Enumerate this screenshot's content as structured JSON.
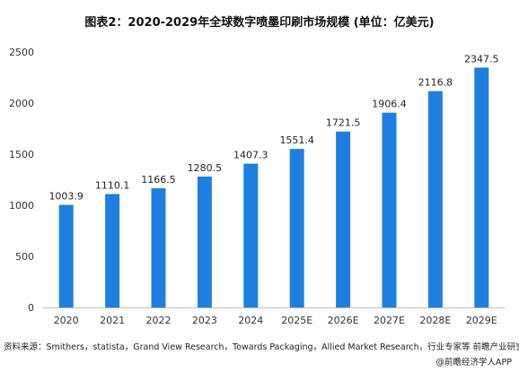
{
  "chart_data": {
    "type": "bar",
    "title": "图表2：2020-2029年全球数字喷墨印刷市场规模 (单位：亿美元)",
    "categories": [
      "2020",
      "2021",
      "2022",
      "2023",
      "2024",
      "2025E",
      "2026E",
      "2027E",
      "2028E",
      "2029E"
    ],
    "values": [
      1003.9,
      1110.1,
      1166.5,
      1280.5,
      1407.3,
      1551.4,
      1721.5,
      1906.4,
      2116.8,
      2347.5
    ],
    "value_labels": [
      "1003.9",
      "1110.1",
      "1166.5",
      "1280.5",
      "1407.3",
      "1551.4",
      "1721.5",
      "1906.4",
      "2116.8",
      "2347.5"
    ],
    "ylim": [
      0,
      2500
    ],
    "yticks": [
      "0",
      "500",
      "1000",
      "1500",
      "2000",
      "2500"
    ],
    "grid": false,
    "bar_color": "#1F7FE0"
  },
  "source_note": "资料来源：Smithers，statista，Grand View Research，Towards Packaging，Allied Market Research，行业专家等 前瞻产业研究院",
  "credit": "@前瞻经济学人APP"
}
